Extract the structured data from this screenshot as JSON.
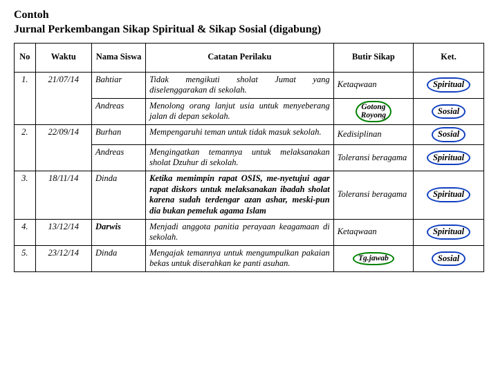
{
  "title_line1": "Contoh",
  "title_line2": "Jurnal Perkembangan Sikap Spiritual & Sikap Sosial (digabung)",
  "headers": {
    "no": "No",
    "waktu": "Waktu",
    "nama": "Nama Siswa",
    "catatan": "Catatan Perilaku",
    "butir": "Butir Sikap",
    "ket": "Ket."
  },
  "rows": [
    {
      "no": "1.",
      "waktu": "21/07/14",
      "nama": "Bahtiar",
      "catatan": "Tidak mengikuti sholat Jumat yang diselenggarakan di sekolah.",
      "butir": "Ketaqwaan",
      "ket": "Spiritual"
    },
    {
      "no": "",
      "waktu": "",
      "nama": "Andreas",
      "catatan": "Menolong orang lanjut usia untuk menyeberang jalan di depan sekolah.",
      "butir_highlight": "Gotong Royong",
      "ket": "Sosial"
    },
    {
      "no": "2.",
      "waktu": "22/09/14",
      "nama": "Burhan",
      "catatan": "Mempengaruhi teman untuk tidak masuk sekolah.",
      "butir": "Kedisiplinan",
      "ket": "Sosial"
    },
    {
      "no": "",
      "waktu": "",
      "nama": "Andreas",
      "catatan": "Mengingatkan temannya untuk melaksanakan sholat Dzuhur di sekolah.",
      "butir": "Toleransi beragama",
      "ket": "Spiritual"
    },
    {
      "no": "3.",
      "waktu": "18/11/14",
      "nama": "Dinda",
      "catatan_override": "Ketika memimpin rapat OSIS, me-nyetujui agar rapat diskors untuk melaksanakan ibadah sholat karena sudah terdengar azan ashar, meski-pun dia bukan pemeluk agama Islam",
      "butir": "Toleransi beragama",
      "ket": "Spiritual"
    },
    {
      "no": "4.",
      "waktu": "13/12/14",
      "nama_override": "Darwis",
      "catatan": "Menjadi anggota panitia perayaan keagamaan di sekolah.",
      "butir": "Ketaqwaan",
      "ket": "Spiritual"
    },
    {
      "no": "5.",
      "waktu": "23/12/14",
      "nama": "Dinda",
      "catatan": "Mengajak temannya untuk mengumpulkan pakaian bekas untuk diserahkan ke panti asuhan.",
      "butir_highlight": "Tg.jawab",
      "ket": "Sosial"
    }
  ],
  "style": {
    "highlight_green_border": "#008000",
    "highlight_blue_border": "#1040c0",
    "table_border": "#000000",
    "background": "#ffffff",
    "title_fontsize": 16,
    "cell_fontsize": 12.5
  }
}
